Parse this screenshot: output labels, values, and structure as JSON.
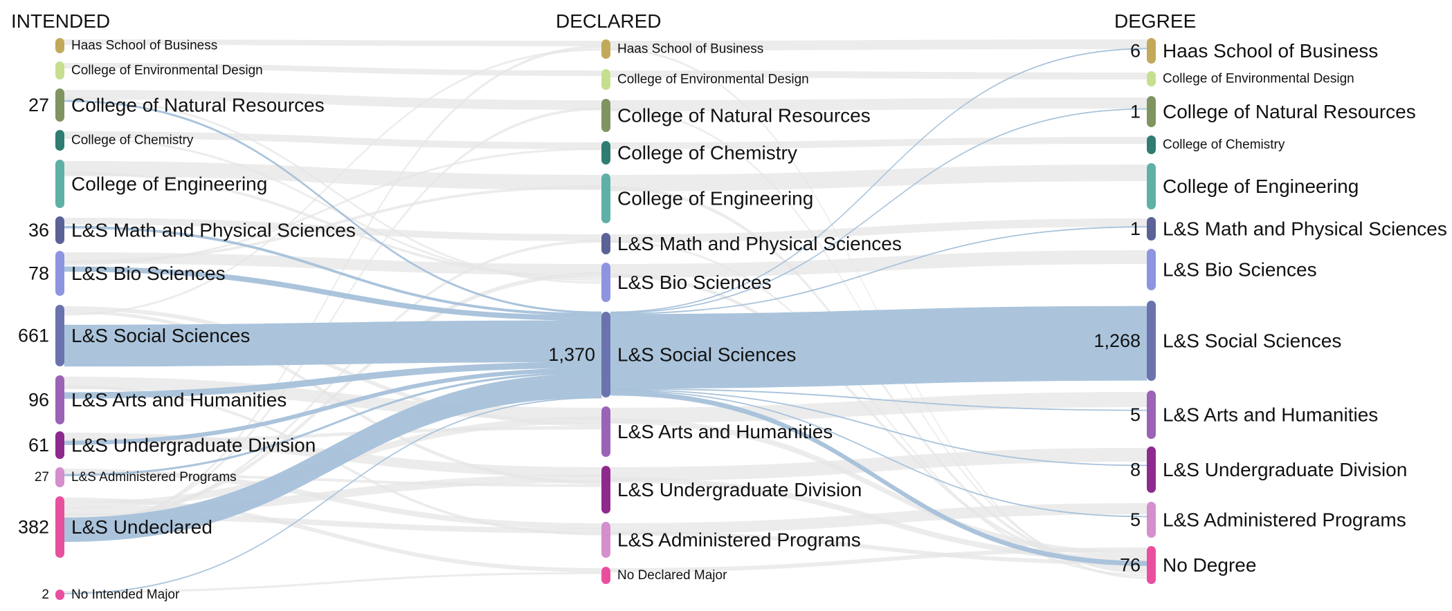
{
  "chart_data": {
    "type": "sankey",
    "columns": [
      "INTENDED",
      "DECLARED",
      "DEGREE"
    ],
    "nodes": {
      "intended": [
        {
          "label": "Haas School of Business",
          "value": null,
          "color": "#c2a95a"
        },
        {
          "label": "College of Environmental Design",
          "value": null,
          "color": "#c5df8f"
        },
        {
          "label": "College of Natural Resources",
          "value": "27",
          "color": "#7f9461"
        },
        {
          "label": "College of Chemistry",
          "value": null,
          "color": "#2f7d72"
        },
        {
          "label": "College of Engineering",
          "value": null,
          "color": "#5fb0a6"
        },
        {
          "label": "L&S Math and Physical Sciences",
          "value": "36",
          "color": "#5a6297"
        },
        {
          "label": "L&S Bio Sciences",
          "value": "78",
          "color": "#8d95e0"
        },
        {
          "label": "L&S Social Sciences",
          "value": "661",
          "color": "#6b73ae"
        },
        {
          "label": "L&S Arts and Humanities",
          "value": "96",
          "color": "#9b63b5"
        },
        {
          "label": "L&S Undergraduate Division",
          "value": "61",
          "color": "#8e2a8e"
        },
        {
          "label": "L&S Administered Programs",
          "value": "27",
          "color": "#d48fcc"
        },
        {
          "label": "L&S Undeclared",
          "value": "382",
          "color": "#e8509e"
        },
        {
          "label": "No Intended Major",
          "value": "2",
          "color": "#ea4f9f"
        }
      ],
      "declared": [
        {
          "label": "Haas School of Business",
          "value": null,
          "color": "#c2a95a"
        },
        {
          "label": "College of Environmental Design",
          "value": null,
          "color": "#c5df8f"
        },
        {
          "label": "College of Natural Resources",
          "value": null,
          "color": "#7f9461"
        },
        {
          "label": "College of Chemistry",
          "value": null,
          "color": "#2f7d72"
        },
        {
          "label": "College of Engineering",
          "value": null,
          "color": "#5fb0a6"
        },
        {
          "label": "L&S Math and Physical Sciences",
          "value": null,
          "color": "#5a6297"
        },
        {
          "label": "L&S Bio Sciences",
          "value": null,
          "color": "#8d95e0"
        },
        {
          "label": "L&S Social Sciences",
          "value": "1,370",
          "color": "#6b73ae"
        },
        {
          "label": "L&S Arts and Humanities",
          "value": null,
          "color": "#9b63b5"
        },
        {
          "label": "L&S Undergraduate Division",
          "value": null,
          "color": "#8e2a8e"
        },
        {
          "label": "L&S Administered Programs",
          "value": null,
          "color": "#d48fcc"
        },
        {
          "label": "No Declared Major",
          "value": null,
          "color": "#ea4f9f"
        }
      ],
      "degree": [
        {
          "label": "Haas School of Business",
          "value": "6",
          "color": "#c2a95a"
        },
        {
          "label": "College of Environmental Design",
          "value": null,
          "color": "#c5df8f"
        },
        {
          "label": "College of Natural Resources",
          "value": "1",
          "color": "#7f9461"
        },
        {
          "label": "College of Chemistry",
          "value": null,
          "color": "#2f7d72"
        },
        {
          "label": "College of Engineering",
          "value": null,
          "color": "#5fb0a6"
        },
        {
          "label": "L&S Math and Physical Sciences",
          "value": "1",
          "color": "#5a6297"
        },
        {
          "label": "L&S Bio Sciences",
          "value": null,
          "color": "#8d95e0"
        },
        {
          "label": "L&S Social Sciences",
          "value": "1,268",
          "color": "#6b73ae"
        },
        {
          "label": "L&S Arts and Humanities",
          "value": "5",
          "color": "#9b63b5"
        },
        {
          "label": "L&S Undergraduate Division",
          "value": "8",
          "color": "#8e2a8e"
        },
        {
          "label": "L&S Administered Programs",
          "value": "5",
          "color": "#d48fcc"
        },
        {
          "label": "No Degree",
          "value": "76",
          "color": "#ea4f9f"
        }
      ]
    },
    "highlight": {
      "node": "L&S Social Sciences",
      "column": "DECLARED",
      "color": "#a6c1da",
      "flows_in": [
        {
          "from": "College of Natural Resources",
          "value": 27
        },
        {
          "from": "L&S Math and Physical Sciences",
          "value": 36
        },
        {
          "from": "L&S Bio Sciences",
          "value": 78
        },
        {
          "from": "L&S Social Sciences",
          "value": 661
        },
        {
          "from": "L&S Arts and Humanities",
          "value": 96
        },
        {
          "from": "L&S Undergraduate Division",
          "value": 61
        },
        {
          "from": "L&S Administered Programs",
          "value": 27
        },
        {
          "from": "L&S Undeclared",
          "value": 382
        },
        {
          "from": "No Intended Major",
          "value": 2
        }
      ],
      "flows_out": [
        {
          "to": "Haas School of Business",
          "value": 6
        },
        {
          "to": "College of Natural Resources",
          "value": 1
        },
        {
          "to": "L&S Math and Physical Sciences",
          "value": 1
        },
        {
          "to": "L&S Social Sciences",
          "value": 1268
        },
        {
          "to": "L&S Arts and Humanities",
          "value": 5
        },
        {
          "to": "L&S Undergraduate Division",
          "value": 8
        },
        {
          "to": "L&S Administered Programs",
          "value": 5
        },
        {
          "to": "No Degree",
          "value": 76
        }
      ]
    },
    "background_flow_color": "#e6e6e6"
  }
}
